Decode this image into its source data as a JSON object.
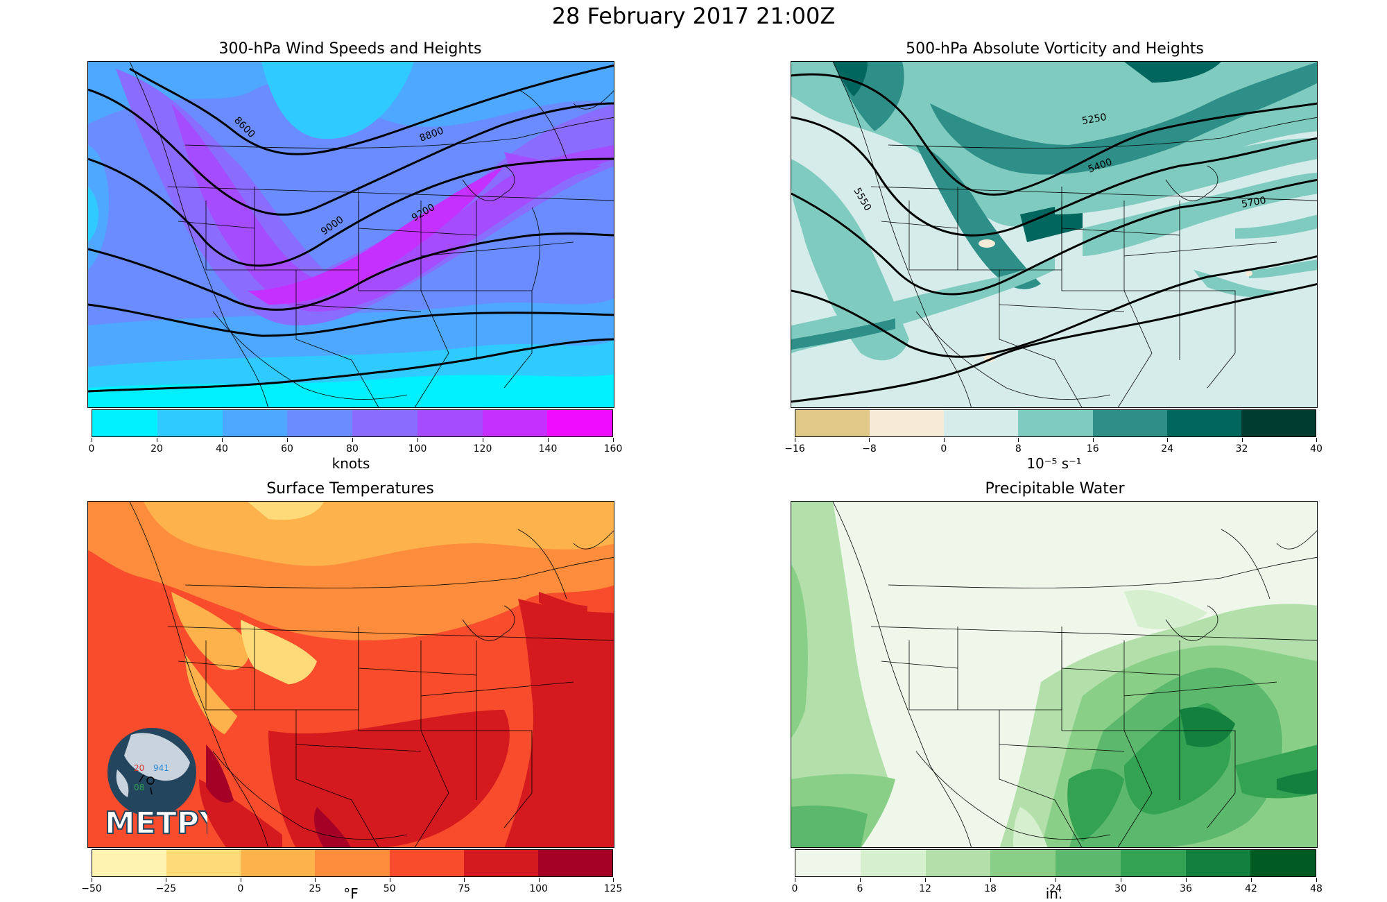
{
  "title": "28 February 2017 21:00Z",
  "colors": {
    "wind": [
      "#00f0ff",
      "#2fcaff",
      "#4ea8ff",
      "#6a8cff",
      "#8a6cff",
      "#a64cff",
      "#c630ff",
      "#f00cff"
    ],
    "vort": [
      "#e0c888",
      "#f5ebd6",
      "#d6ecea",
      "#80cbc0",
      "#2e8f89",
      "#01665e",
      "#003c30"
    ],
    "temp": [
      "#fff3b2",
      "#fedb78",
      "#feb24c",
      "#fd8d3c",
      "#f84c2c",
      "#d4191f",
      "#a50026"
    ],
    "pwat": [
      "#eef7ea",
      "#d5efcf",
      "#b3e0aa",
      "#8acf88",
      "#5cb86c",
      "#33a253",
      "#138040",
      "#005a22"
    ]
  },
  "chart_data": [
    {
      "type": "heatmap",
      "title": "300-hPa Wind Speeds and Heights",
      "colorbar_label": "knots",
      "levels": [
        0,
        20,
        40,
        60,
        80,
        100,
        120,
        140,
        160
      ],
      "contour_labels": [
        "8600",
        "8800",
        "9000",
        "9200"
      ]
    },
    {
      "type": "heatmap",
      "title": "500-hPa Absolute Vorticity and Heights",
      "colorbar_label": "10⁻⁵ s⁻¹",
      "levels": [
        -16,
        -8,
        0,
        8,
        16,
        24,
        32,
        40
      ],
      "contour_labels": [
        "5250",
        "5400",
        "5550",
        "5700"
      ]
    },
    {
      "type": "heatmap",
      "title": "Surface Temperatures",
      "colorbar_label": "°F",
      "levels": [
        -50,
        -25,
        0,
        25,
        50,
        75,
        100,
        125
      ]
    },
    {
      "type": "heatmap",
      "title": "Precipitable Water",
      "colorbar_label": "in.",
      "levels": [
        0,
        6,
        12,
        18,
        24,
        30,
        36,
        42,
        48
      ]
    }
  ],
  "logo": {
    "text": "METPY",
    "station_values": [
      "20",
      "941",
      "08"
    ]
  }
}
